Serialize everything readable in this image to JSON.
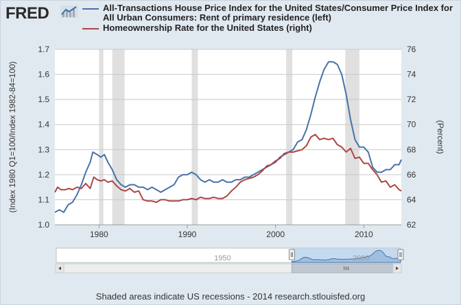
{
  "brand": {
    "name": "FRED",
    "mark_icon": "fred-chart-logo-icon"
  },
  "chart_data": {
    "type": "line",
    "series": [
      {
        "name": "All-Transactions House Price Index for the United States/Consumer Price Index for All Urban Consumers: Rent of primary residence (left)",
        "axis": "left",
        "color": "#4572a7",
        "points": [
          [
            1975.0,
            1.05
          ],
          [
            1975.5,
            1.06
          ],
          [
            1976.0,
            1.05
          ],
          [
            1976.5,
            1.08
          ],
          [
            1977.0,
            1.09
          ],
          [
            1977.5,
            1.12
          ],
          [
            1978.0,
            1.16
          ],
          [
            1978.5,
            1.21
          ],
          [
            1979.0,
            1.25
          ],
          [
            1979.3,
            1.29
          ],
          [
            1979.8,
            1.28
          ],
          [
            1980.2,
            1.27
          ],
          [
            1980.6,
            1.28
          ],
          [
            1981.0,
            1.25
          ],
          [
            1981.5,
            1.22
          ],
          [
            1982.0,
            1.18
          ],
          [
            1982.5,
            1.16
          ],
          [
            1983.0,
            1.15
          ],
          [
            1983.5,
            1.16
          ],
          [
            1984.0,
            1.16
          ],
          [
            1984.5,
            1.15
          ],
          [
            1985.0,
            1.15
          ],
          [
            1985.5,
            1.14
          ],
          [
            1986.0,
            1.15
          ],
          [
            1986.5,
            1.14
          ],
          [
            1987.0,
            1.13
          ],
          [
            1987.5,
            1.14
          ],
          [
            1988.0,
            1.15
          ],
          [
            1988.5,
            1.16
          ],
          [
            1989.0,
            1.19
          ],
          [
            1989.5,
            1.2
          ],
          [
            1990.0,
            1.2
          ],
          [
            1990.5,
            1.21
          ],
          [
            1991.0,
            1.2
          ],
          [
            1991.5,
            1.18
          ],
          [
            1992.0,
            1.17
          ],
          [
            1992.5,
            1.18
          ],
          [
            1993.0,
            1.17
          ],
          [
            1993.5,
            1.17
          ],
          [
            1994.0,
            1.18
          ],
          [
            1994.5,
            1.17
          ],
          [
            1995.0,
            1.17
          ],
          [
            1995.5,
            1.18
          ],
          [
            1996.0,
            1.18
          ],
          [
            1996.5,
            1.19
          ],
          [
            1997.0,
            1.19
          ],
          [
            1997.5,
            1.2
          ],
          [
            1998.0,
            1.21
          ],
          [
            1998.5,
            1.22
          ],
          [
            1999.0,
            1.23
          ],
          [
            1999.5,
            1.24
          ],
          [
            2000.0,
            1.25
          ],
          [
            2000.5,
            1.27
          ],
          [
            2001.0,
            1.28
          ],
          [
            2001.5,
            1.29
          ],
          [
            2002.0,
            1.3
          ],
          [
            2002.5,
            1.33
          ],
          [
            2003.0,
            1.34
          ],
          [
            2003.5,
            1.38
          ],
          [
            2004.0,
            1.44
          ],
          [
            2004.5,
            1.51
          ],
          [
            2005.0,
            1.57
          ],
          [
            2005.5,
            1.62
          ],
          [
            2006.0,
            1.65
          ],
          [
            2006.5,
            1.65
          ],
          [
            2007.0,
            1.64
          ],
          [
            2007.5,
            1.6
          ],
          [
            2008.0,
            1.52
          ],
          [
            2008.5,
            1.42
          ],
          [
            2009.0,
            1.34
          ],
          [
            2009.5,
            1.31
          ],
          [
            2010.0,
            1.31
          ],
          [
            2010.5,
            1.29
          ],
          [
            2011.0,
            1.23
          ],
          [
            2011.5,
            1.21
          ],
          [
            2012.0,
            1.21
          ],
          [
            2012.5,
            1.22
          ],
          [
            2013.0,
            1.22
          ],
          [
            2013.5,
            1.24
          ],
          [
            2014.0,
            1.24
          ],
          [
            2014.25,
            1.26
          ]
        ]
      },
      {
        "name": "Homeownership Rate for the United States (right)",
        "axis": "right",
        "color": "#aa4643",
        "points": [
          [
            1975.0,
            64.6
          ],
          [
            1975.3,
            65.0
          ],
          [
            1975.7,
            64.8
          ],
          [
            1976.2,
            64.8
          ],
          [
            1976.6,
            64.9
          ],
          [
            1977.0,
            64.8
          ],
          [
            1977.5,
            65.0
          ],
          [
            1978.0,
            64.9
          ],
          [
            1978.5,
            65.3
          ],
          [
            1979.0,
            64.9
          ],
          [
            1979.4,
            65.8
          ],
          [
            1979.8,
            65.6
          ],
          [
            1980.2,
            65.5
          ],
          [
            1980.6,
            65.6
          ],
          [
            1981.0,
            65.4
          ],
          [
            1981.5,
            65.5
          ],
          [
            1982.0,
            65.1
          ],
          [
            1982.5,
            64.8
          ],
          [
            1983.0,
            64.7
          ],
          [
            1983.5,
            64.9
          ],
          [
            1984.0,
            64.6
          ],
          [
            1984.5,
            64.7
          ],
          [
            1985.0,
            64.0
          ],
          [
            1985.5,
            63.9
          ],
          [
            1986.0,
            63.9
          ],
          [
            1986.5,
            63.8
          ],
          [
            1987.0,
            64.0
          ],
          [
            1987.5,
            64.0
          ],
          [
            1988.0,
            63.9
          ],
          [
            1988.5,
            63.9
          ],
          [
            1989.0,
            63.9
          ],
          [
            1989.5,
            64.0
          ],
          [
            1990.0,
            64.0
          ],
          [
            1990.5,
            64.1
          ],
          [
            1991.0,
            64.0
          ],
          [
            1991.5,
            64.2
          ],
          [
            1992.0,
            64.1
          ],
          [
            1992.5,
            64.1
          ],
          [
            1993.0,
            64.2
          ],
          [
            1993.5,
            64.1
          ],
          [
            1994.0,
            64.1
          ],
          [
            1994.5,
            64.3
          ],
          [
            1995.0,
            64.7
          ],
          [
            1995.5,
            65.0
          ],
          [
            1996.0,
            65.4
          ],
          [
            1996.5,
            65.6
          ],
          [
            1997.0,
            65.7
          ],
          [
            1997.5,
            65.8
          ],
          [
            1998.0,
            66.0
          ],
          [
            1998.5,
            66.3
          ],
          [
            1999.0,
            66.7
          ],
          [
            1999.5,
            66.8
          ],
          [
            2000.0,
            67.1
          ],
          [
            2000.5,
            67.3
          ],
          [
            2001.0,
            67.7
          ],
          [
            2001.5,
            67.8
          ],
          [
            2002.0,
            67.8
          ],
          [
            2002.5,
            67.9
          ],
          [
            2003.0,
            68.0
          ],
          [
            2003.5,
            68.3
          ],
          [
            2004.0,
            69.0
          ],
          [
            2004.5,
            69.2
          ],
          [
            2005.0,
            68.8
          ],
          [
            2005.5,
            68.9
          ],
          [
            2006.0,
            68.8
          ],
          [
            2006.5,
            68.9
          ],
          [
            2007.0,
            68.4
          ],
          [
            2007.5,
            68.2
          ],
          [
            2008.0,
            67.8
          ],
          [
            2008.5,
            68.1
          ],
          [
            2009.0,
            67.3
          ],
          [
            2009.5,
            67.4
          ],
          [
            2010.0,
            66.9
          ],
          [
            2010.5,
            66.9
          ],
          [
            2011.0,
            66.4
          ],
          [
            2011.5,
            66.0
          ],
          [
            2012.0,
            65.4
          ],
          [
            2012.5,
            65.5
          ],
          [
            2013.0,
            65.0
          ],
          [
            2013.5,
            65.2
          ],
          [
            2014.0,
            64.8
          ],
          [
            2014.25,
            64.7
          ]
        ]
      }
    ],
    "recessions": [
      [
        1980.0,
        1980.5
      ],
      [
        1981.5,
        1982.9
      ],
      [
        1990.5,
        1991.2
      ],
      [
        2001.2,
        2001.9
      ],
      [
        2007.9,
        2009.5
      ]
    ],
    "left_axis": {
      "label": "(Index 1980 Q1=100/Index 1982-84=100)",
      "ylim": [
        1.0,
        1.7
      ],
      "ticks": [
        "1.0",
        "1.1",
        "1.2",
        "1.3",
        "1.4",
        "1.5",
        "1.6",
        "1.7"
      ]
    },
    "right_axis": {
      "label": "(Percent)",
      "ylim": [
        62,
        76
      ],
      "ticks": [
        "62",
        "64",
        "66",
        "68",
        "70",
        "72",
        "74",
        "76"
      ]
    },
    "x_axis": {
      "xlim": [
        1975.0,
        2014.25
      ],
      "ticks": [
        "1980",
        "1990",
        "2000",
        "2010"
      ]
    },
    "navigator": {
      "labels": [
        "1950",
        "2000"
      ],
      "range": [
        1890,
        2014.25
      ],
      "selected": [
        1975.0,
        2014.25
      ]
    }
  },
  "footer": "Shaded areas indicate US recessions - 2014 research.stlouisfed.org"
}
